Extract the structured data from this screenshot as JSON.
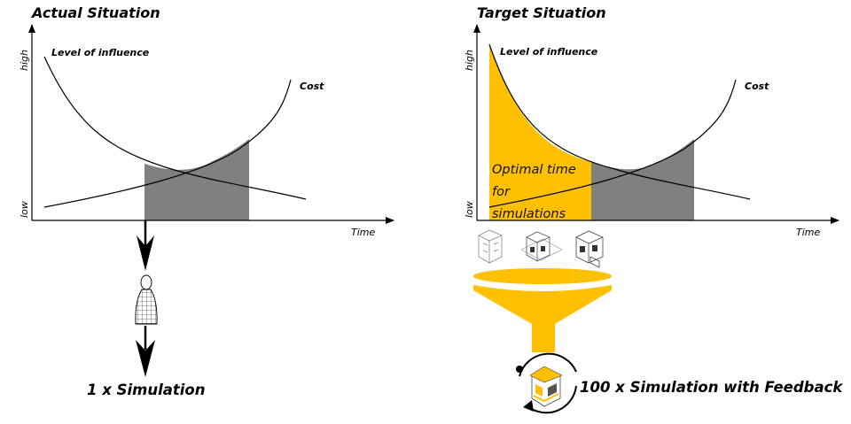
{
  "left": {
    "title": "Actual Situation",
    "y_high": "high",
    "y_low": "low",
    "x_label": "Time",
    "influence_label": "Level of influence",
    "cost_label": "Cost",
    "result_label": "1 x Simulation"
  },
  "right": {
    "title": "Target  Situation",
    "y_high": "high",
    "y_low": "low",
    "x_label": "Time",
    "influence_label": "Level of influence",
    "cost_label": "Cost",
    "optimal_line1": "Optimal time",
    "optimal_line2": "for",
    "optimal_line3": "simulations",
    "result_label": "100 x Simulation with Feedback"
  },
  "colors": {
    "highlight": "#FFC000",
    "grey_band": "#808080",
    "axis": "#000000"
  },
  "icons": [
    "arrow-down-icon",
    "person-mesh-icon",
    "building-model-icon",
    "funnel-icon",
    "cycle-arrows-icon",
    "house-icon"
  ]
}
